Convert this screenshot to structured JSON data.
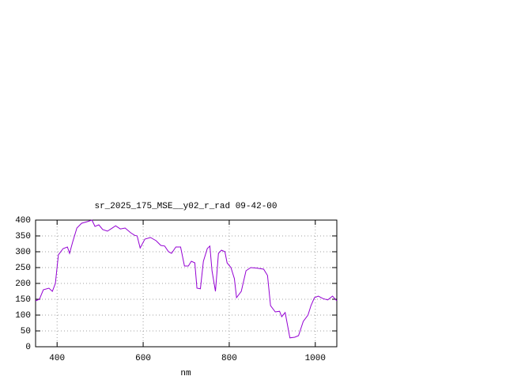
{
  "chart_data": {
    "type": "line",
    "title": "sr_2025_175_MSE__y02_r_rad 09-42-00",
    "x_label": "nm",
    "xlim": [
      350,
      1050
    ],
    "xticks": [
      400,
      600,
      800,
      1000
    ],
    "ylim": [
      0,
      400
    ],
    "yticks": [
      0,
      50,
      100,
      150,
      200,
      250,
      300,
      350,
      400
    ],
    "grid": true,
    "series": [
      {
        "color": "#9400d3",
        "x": [
          350,
          359,
          368,
          381,
          389,
          396,
          403,
          414,
          424,
          429,
          436,
          446,
          457,
          470,
          481,
          488,
          497,
          506,
          517,
          525,
          536,
          547,
          558,
          571,
          580,
          586,
          593,
          604,
          617,
          630,
          641,
          650,
          659,
          666,
          676,
          687,
          696,
          705,
          712,
          720,
          725,
          733,
          740,
          749,
          755,
          760,
          768,
          775,
          782,
          790,
          795,
          804,
          812,
          817,
          828,
          839,
          850,
          865,
          880,
          889,
          896,
          907,
          917,
          922,
          930,
          941,
          952,
          961,
          972,
          983,
          990,
          998,
          1007,
          1018,
          1029,
          1040,
          1050
        ],
        "values": [
          145,
          150,
          180,
          185,
          175,
          200,
          290,
          310,
          315,
          295,
          330,
          375,
          390,
          395,
          400,
          380,
          385,
          370,
          365,
          372,
          382,
          372,
          375,
          360,
          352,
          350,
          312,
          340,
          345,
          335,
          320,
          318,
          300,
          295,
          315,
          315,
          255,
          255,
          270,
          265,
          185,
          183,
          270,
          310,
          318,
          240,
          175,
          295,
          305,
          300,
          265,
          250,
          215,
          155,
          175,
          240,
          250,
          248,
          245,
          225,
          130,
          110,
          112,
          95,
          108,
          28,
          30,
          35,
          80,
          100,
          130,
          155,
          160,
          152,
          148,
          160,
          145
        ]
      }
    ]
  }
}
